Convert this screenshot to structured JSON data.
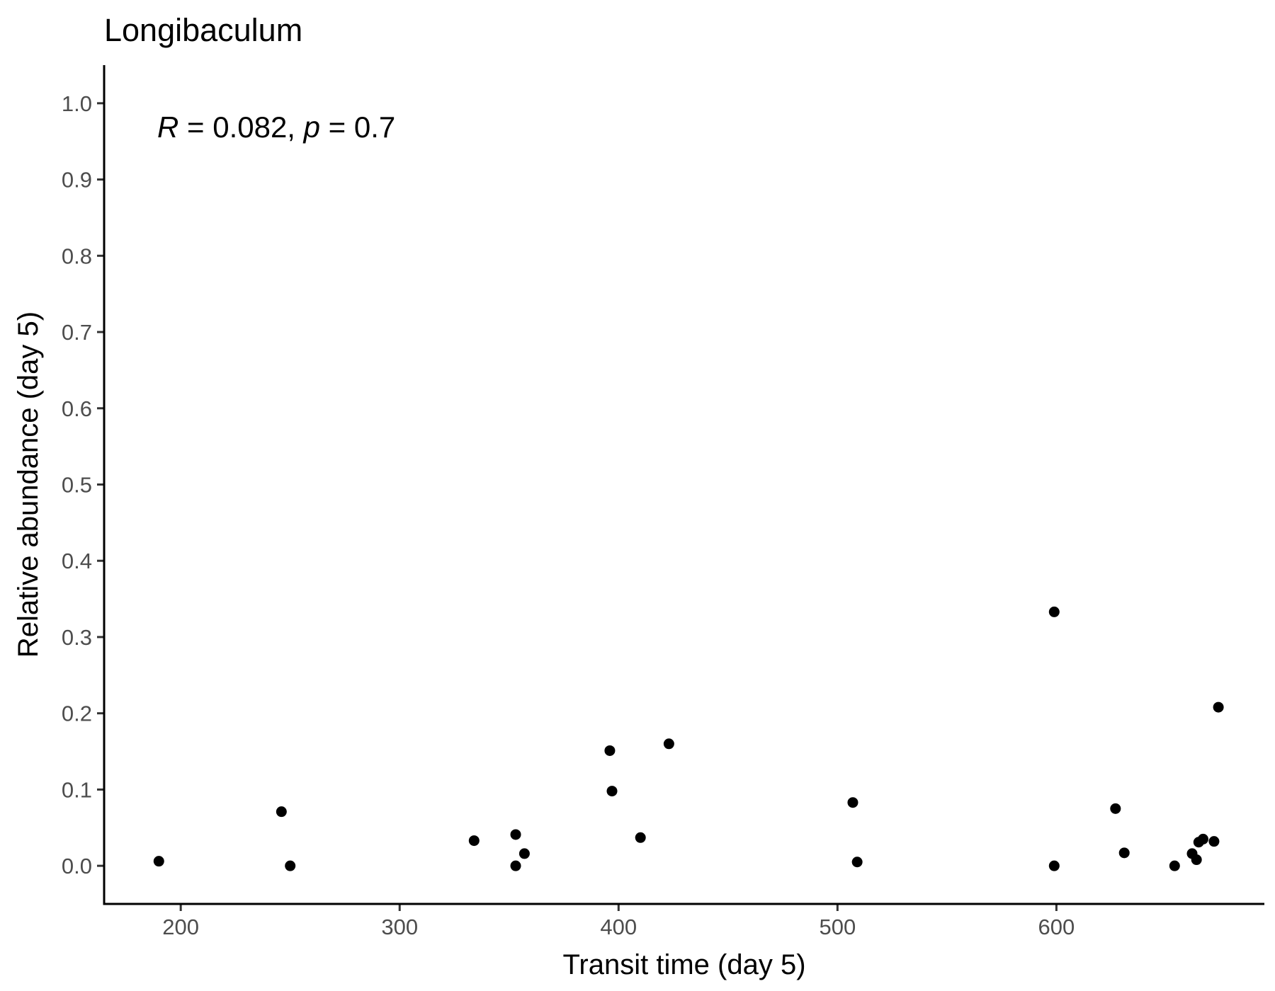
{
  "chart_data": {
    "type": "scatter",
    "title": "Longibaculum",
    "xlabel": "Transit time (day 5)",
    "ylabel": "Relative abundance (day 5)",
    "xlim": [
      165,
      695
    ],
    "ylim": [
      -0.05,
      1.05
    ],
    "xticks": [
      200,
      300,
      400,
      500,
      600
    ],
    "xtick_labels": [
      "200",
      "300",
      "400",
      "500",
      "600"
    ],
    "yticks": [
      0.0,
      0.1,
      0.2,
      0.3,
      0.4,
      0.5,
      0.6,
      0.7,
      0.8,
      0.9,
      1.0
    ],
    "ytick_labels": [
      "0.0",
      "0.1",
      "0.2",
      "0.3",
      "0.4",
      "0.5",
      "0.6",
      "0.7",
      "0.8",
      "0.9",
      "1.0"
    ],
    "grid": false,
    "annotation": {
      "r_symbol": "R",
      "r_text": " = 0.082, ",
      "p_symbol": "p",
      "p_text": " = 0.7"
    },
    "point_color": "#000000",
    "points": [
      {
        "x": 190,
        "y": 0.006
      },
      {
        "x": 246,
        "y": 0.071
      },
      {
        "x": 250,
        "y": 0.0
      },
      {
        "x": 334,
        "y": 0.033
      },
      {
        "x": 353,
        "y": 0.041
      },
      {
        "x": 353,
        "y": 0.0
      },
      {
        "x": 357,
        "y": 0.016
      },
      {
        "x": 396,
        "y": 0.151
      },
      {
        "x": 397,
        "y": 0.098
      },
      {
        "x": 410,
        "y": 0.037
      },
      {
        "x": 423,
        "y": 0.16
      },
      {
        "x": 507,
        "y": 0.083
      },
      {
        "x": 509,
        "y": 0.005
      },
      {
        "x": 599,
        "y": 0.333
      },
      {
        "x": 599,
        "y": 0.0
      },
      {
        "x": 627,
        "y": 0.075
      },
      {
        "x": 631,
        "y": 0.017
      },
      {
        "x": 654,
        "y": 0.0
      },
      {
        "x": 662,
        "y": 0.016
      },
      {
        "x": 664,
        "y": 0.008
      },
      {
        "x": 665,
        "y": 0.031
      },
      {
        "x": 667,
        "y": 0.035
      },
      {
        "x": 672,
        "y": 0.032
      },
      {
        "x": 674,
        "y": 0.208
      }
    ]
  }
}
